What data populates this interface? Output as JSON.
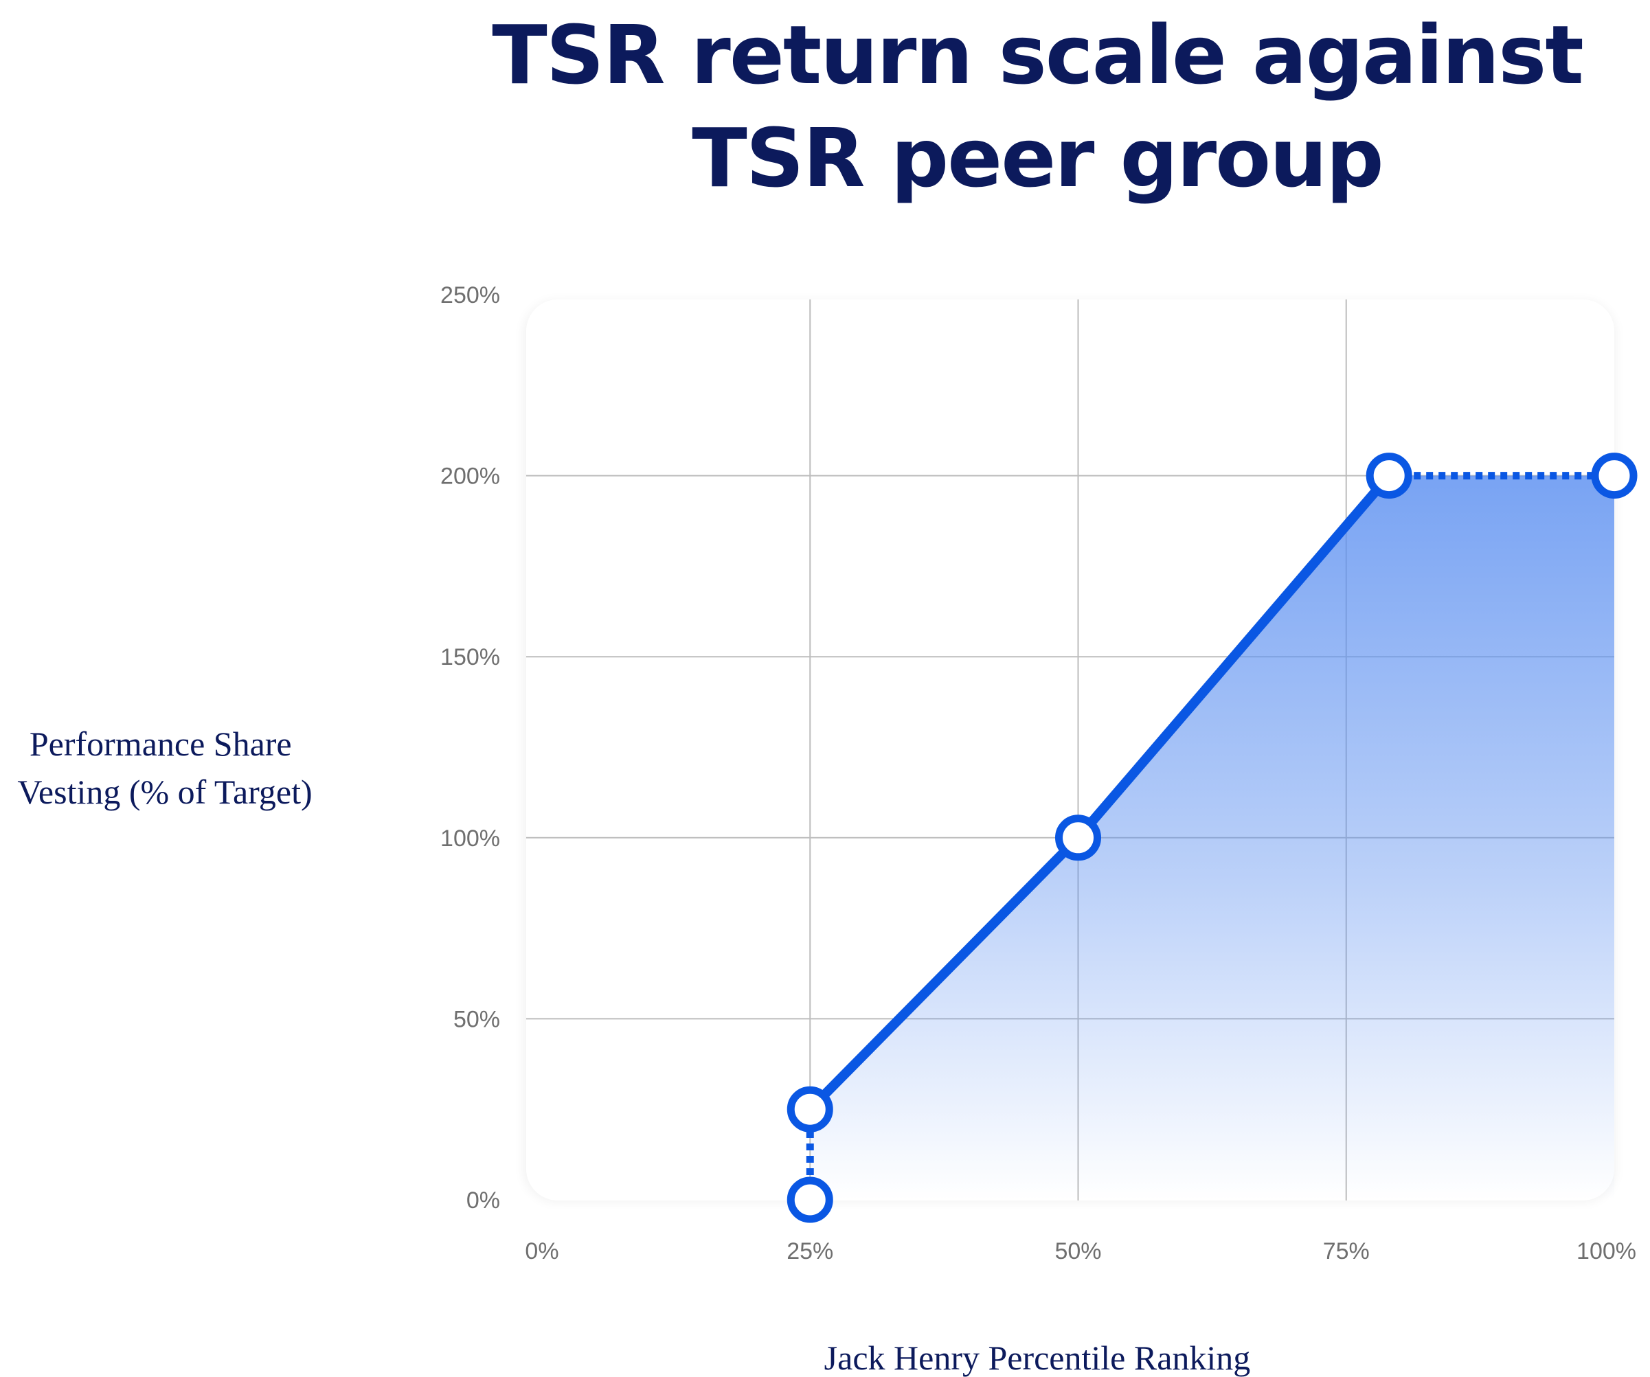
{
  "chart_data": {
    "type": "line",
    "title": "TSR return scale against TSR peer group",
    "xlabel": "Jack Henry Percentile Ranking",
    "ylabel": "Performance Share Vesting (% of Target)",
    "ylabel_lines": [
      "Performance Share",
      "Vesting (% of Target)"
    ],
    "x_ticks": [
      "0%",
      "25%",
      "50%",
      "75%",
      "100%"
    ],
    "y_ticks": [
      "0%",
      "50%",
      "100%",
      "150%",
      "200%",
      "250%"
    ],
    "xlim": [
      0,
      100
    ],
    "ylim": [
      0,
      250
    ],
    "grid": true,
    "legend": "none",
    "series": [
      {
        "points": [
          {
            "x": 25,
            "y": 0
          },
          {
            "x": 25,
            "y": 25
          },
          {
            "x": 50,
            "y": 100
          },
          {
            "x": 79,
            "y": 200
          },
          {
            "x": 100,
            "y": 200
          }
        ],
        "dotted_segments": [
          [
            0,
            1
          ],
          [
            3,
            4
          ]
        ],
        "color": "#0a57e3"
      }
    ],
    "fill_color": "#5b8ff0",
    "grid_color": "#bdbdbd",
    "text_color": "#0c1a5c"
  }
}
